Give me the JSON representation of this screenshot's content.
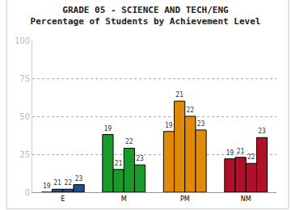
{
  "chart_data": {
    "type": "bar",
    "title": "GRADE 05 - SCIENCE AND TECH/ENG",
    "subtitle": "Percentage of Students by Achievement Level",
    "categories": [
      "E",
      "M",
      "PM",
      "NM"
    ],
    "series": [
      {
        "name": "19",
        "values": [
          0,
          38,
          40,
          22
        ],
        "colors": [
          "#1f4e8c",
          "#1a9a2a",
          "#e08a0b",
          "#b0102a"
        ]
      },
      {
        "name": "21",
        "values": [
          2,
          15,
          60,
          23
        ],
        "colors": [
          "#1f4e8c",
          "#1a9a2a",
          "#e08a0b",
          "#b0102a"
        ]
      },
      {
        "name": "22",
        "values": [
          2,
          29,
          50,
          19
        ],
        "colors": [
          "#1f4e8c",
          "#1a9a2a",
          "#e08a0b",
          "#b0102a"
        ]
      },
      {
        "name": "23",
        "values": [
          5,
          18,
          41,
          36
        ],
        "colors": [
          "#1f4e8c",
          "#1a9a2a",
          "#e08a0b",
          "#b0102a"
        ]
      }
    ],
    "ylim": [
      0,
      100
    ],
    "yticks": [
      0,
      25,
      50,
      75,
      100
    ],
    "grid": true
  }
}
